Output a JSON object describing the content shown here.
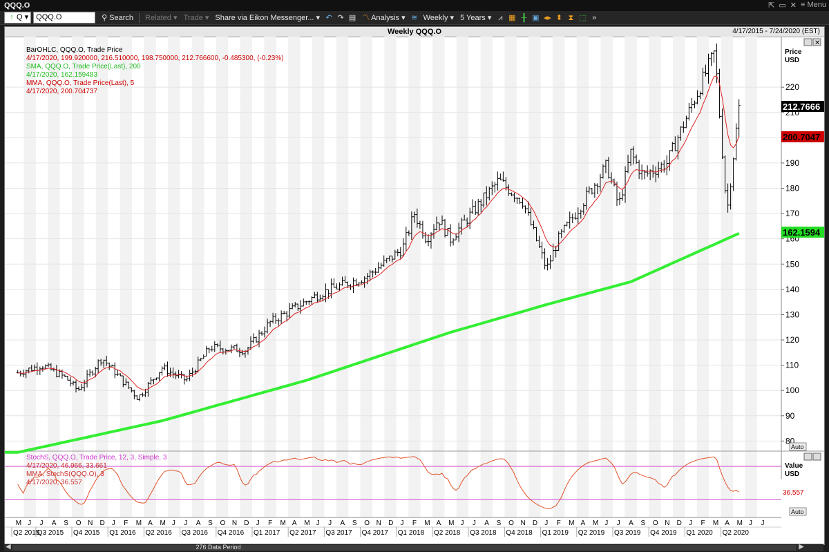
{
  "window": {
    "title": "QQQ.O",
    "menu_label": "Menu"
  },
  "toolbar": {
    "ric_selector": "Q",
    "ric_value": "QQQ.O",
    "search": "Search",
    "related": "Related",
    "trade": "Trade",
    "share": "Share via Eikon Messenger...",
    "analysis": "Analysis",
    "interval": "Weekly",
    "range": "5 Years"
  },
  "chart": {
    "title": "Weekly QQQ.O",
    "date_range": "4/17/2015 - 7/24/2020 (EST)",
    "price_axis_label_1": "Price",
    "price_axis_label_2": "USD",
    "value_axis_label_1": "Value",
    "value_axis_label_2": "USD",
    "auto_label": "Auto",
    "data_period": "276 Data Period",
    "last_price_tag": "212.7666",
    "mma_tag": "200.7047",
    "sma_tag": "162.1594",
    "stoch_tag": "36.557",
    "legend_price": [
      "BarOHLC, QQQ.O, Trade Price",
      "4/17/2020, 199.920000, 216.510000, 198.750000, 212.766600, -0.485300, (-0.23%)",
      "SMA, QQQ.O, Trade Price(Last),  200",
      "4/17/2020, 162.159483",
      "MMA, QQQ.O, Trade Price(Last),  5",
      "4/17/2020, 200.704737"
    ],
    "legend_stoch": [
      "StochS, QQQ.O, Trade Price,  12, 3, Simple, 3",
      "4/17/2020, 46.966, 33.661",
      "MMA, StochS(QQQ.O),  3",
      "4/17/2020, 36.557"
    ],
    "colors": {
      "bars": "#000000",
      "sma": "#33ee33",
      "mma": "#dd2222",
      "stoch_line": "#e0522a",
      "stoch_bounds": "#cc44cc",
      "tag_black": "#000000",
      "tag_red": "#cc0000",
      "tag_green": "#22dd22"
    }
  },
  "chart_data": {
    "type": "line",
    "title": "Weekly QQQ.O",
    "ylabel": "Price USD",
    "ylim": [
      76,
      240
    ],
    "yticks": [
      80,
      90,
      100,
      110,
      120,
      130,
      140,
      150,
      160,
      170,
      180,
      190,
      200,
      210,
      220
    ],
    "month_ticks": [
      "M",
      "J",
      "J",
      "A",
      "S",
      "O",
      "N",
      "D",
      "J",
      "F",
      "M",
      "A",
      "M",
      "J",
      "J",
      "A",
      "S",
      "O",
      "N",
      "D",
      "J",
      "F",
      "M",
      "A",
      "M",
      "J",
      "J",
      "A",
      "S",
      "O",
      "N",
      "D",
      "J",
      "F",
      "M",
      "A",
      "M",
      "J",
      "J",
      "A",
      "S",
      "O",
      "N",
      "D",
      "J",
      "F",
      "M",
      "A",
      "M",
      "J",
      "J",
      "A",
      "S",
      "O",
      "N",
      "D",
      "J",
      "F",
      "M",
      "A",
      "M",
      "J",
      "J"
    ],
    "quarter_ticks": [
      "Q2 2015",
      "Q3 2015",
      "Q4 2015",
      "Q1 2016",
      "Q2 2016",
      "Q3 2016",
      "Q4 2016",
      "Q1 2017",
      "Q2 2017",
      "Q3 2017",
      "Q4 2017",
      "Q1 2018",
      "Q2 2018",
      "Q3 2018",
      "Q4 2018",
      "Q1 2019",
      "Q2 2019",
      "Q3 2019",
      "Q4 2019",
      "Q1 2020",
      "Q2 2020"
    ],
    "price_keypoints": [
      {
        "x": "2015-04",
        "y": 107
      },
      {
        "x": "2015-06",
        "y": 110
      },
      {
        "x": "2015-08",
        "y": 105
      },
      {
        "x": "2015-09",
        "y": 100
      },
      {
        "x": "2015-11",
        "y": 113
      },
      {
        "x": "2016-02",
        "y": 97
      },
      {
        "x": "2016-04",
        "y": 109
      },
      {
        "x": "2016-06",
        "y": 104
      },
      {
        "x": "2016-08",
        "y": 117
      },
      {
        "x": "2016-11",
        "y": 116
      },
      {
        "x": "2017-01",
        "y": 127
      },
      {
        "x": "2017-05",
        "y": 138
      },
      {
        "x": "2017-06",
        "y": 140
      },
      {
        "x": "2017-09",
        "y": 145
      },
      {
        "x": "2017-12",
        "y": 156
      },
      {
        "x": "2018-01",
        "y": 170
      },
      {
        "x": "2018-02",
        "y": 160
      },
      {
        "x": "2018-03",
        "y": 168
      },
      {
        "x": "2018-04",
        "y": 160
      },
      {
        "x": "2018-08",
        "y": 183
      },
      {
        "x": "2018-10",
        "y": 175
      },
      {
        "x": "2018-12",
        "y": 148
      },
      {
        "x": "2019-01",
        "y": 160
      },
      {
        "x": "2019-05",
        "y": 189
      },
      {
        "x": "2019-06",
        "y": 173
      },
      {
        "x": "2019-07",
        "y": 194
      },
      {
        "x": "2019-08",
        "y": 185
      },
      {
        "x": "2019-10",
        "y": 190
      },
      {
        "x": "2020-02",
        "y": 234
      },
      {
        "x": "2020-03",
        "y": 170
      },
      {
        "x": "2020-04",
        "y": 212.77
      }
    ],
    "series": [
      {
        "name": "SMA 200",
        "points": [
          {
            "x": "2015-04",
            "y": 75.5
          },
          {
            "x": "2016-04",
            "y": 88
          },
          {
            "x": "2017-04",
            "y": 104
          },
          {
            "x": "2018-04",
            "y": 123
          },
          {
            "x": "2018-12",
            "y": 134
          },
          {
            "x": "2019-07",
            "y": 143
          },
          {
            "x": "2020-04",
            "y": 162.16
          }
        ]
      },
      {
        "name": "MMA 5",
        "last": 200.7
      },
      {
        "name": "StochS 12,3,3",
        "range": [
          0,
          100
        ],
        "upper_bound": 80,
        "lower_bound": 20,
        "last": 36.557
      }
    ],
    "last_values": {
      "close": 212.7666,
      "sma200": 162.1594,
      "mma5": 200.7047,
      "stoch": 36.557
    },
    "grid": true,
    "legend_position": "top-left"
  }
}
